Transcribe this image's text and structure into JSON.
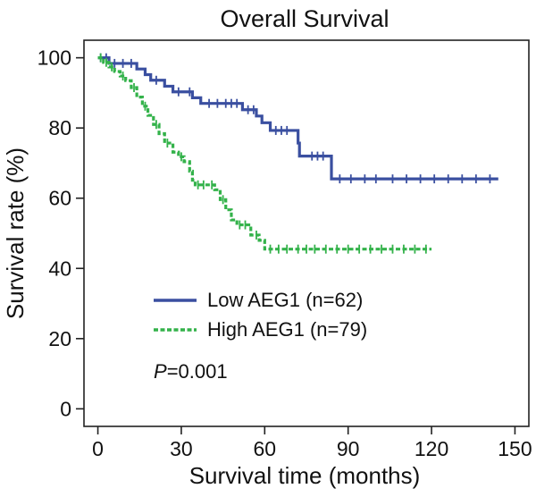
{
  "chart_data": {
    "type": "line",
    "title": "Overall Survival",
    "xlabel": "Survival time (months)",
    "ylabel": "Survival rate (%)",
    "xlim": [
      -5,
      155
    ],
    "ylim": [
      -5,
      105
    ],
    "xticks": [
      0,
      30,
      60,
      90,
      120,
      150
    ],
    "yticks": [
      0,
      20,
      40,
      60,
      80,
      100
    ],
    "grid": false,
    "legend_position": "lower-center",
    "annotation": {
      "italic": "P",
      "rest": "=0.001"
    },
    "series": [
      {
        "name": "Low AEG1 (n=62)",
        "color": "#3a4fa0",
        "style": "solid",
        "steps": [
          [
            0,
            100
          ],
          [
            4,
            98.4
          ],
          [
            14,
            96.8
          ],
          [
            17,
            95.2
          ],
          [
            19,
            93.6
          ],
          [
            24,
            91.9
          ],
          [
            27,
            90.3
          ],
          [
            34,
            88.6
          ],
          [
            37,
            87.0
          ],
          [
            52,
            85.2
          ],
          [
            57,
            83.4
          ],
          [
            59,
            81.5
          ],
          [
            62,
            79.3
          ],
          [
            72,
            75.7
          ],
          [
            72.5,
            72.0
          ],
          [
            84,
            65.5
          ],
          [
            144,
            65.5
          ]
        ],
        "censors": [
          1,
          3,
          6,
          9,
          12,
          21,
          29,
          33,
          40,
          43,
          46,
          48,
          50,
          54,
          56,
          64,
          66,
          68,
          77,
          79,
          81,
          87,
          91,
          96,
          100,
          106,
          111,
          116,
          121,
          126,
          131,
          136,
          141
        ]
      },
      {
        "name": "High AEG1 (n=79)",
        "color": "#33b24a",
        "style": "dashed",
        "steps": [
          [
            0,
            100
          ],
          [
            2,
            98.7
          ],
          [
            4,
            97.4
          ],
          [
            6,
            96.1
          ],
          [
            8,
            94.8
          ],
          [
            10,
            93.5
          ],
          [
            12,
            91.5
          ],
          [
            14,
            88.8
          ],
          [
            16,
            86.2
          ],
          [
            18,
            83.6
          ],
          [
            20,
            81.0
          ],
          [
            22,
            78.4
          ],
          [
            24,
            75.7
          ],
          [
            27,
            73.1
          ],
          [
            29,
            71.8
          ],
          [
            31,
            70.4
          ],
          [
            33,
            67.7
          ],
          [
            34,
            65.1
          ],
          [
            35,
            63.8
          ],
          [
            40,
            63.8
          ],
          [
            42,
            62.4
          ],
          [
            44,
            59.6
          ],
          [
            46,
            56.7
          ],
          [
            48,
            53.8
          ],
          [
            50,
            52.4
          ],
          [
            55,
            49.5
          ],
          [
            58,
            48.0
          ],
          [
            60,
            45.5
          ],
          [
            120,
            45.5
          ]
        ],
        "censors": [
          1,
          3,
          5,
          9,
          13,
          17,
          21,
          25,
          30,
          36,
          38,
          41,
          45,
          51,
          53,
          57,
          62,
          65,
          68,
          72,
          75,
          78,
          82,
          86,
          90,
          94,
          98,
          102,
          106,
          110,
          114,
          118
        ]
      }
    ]
  }
}
